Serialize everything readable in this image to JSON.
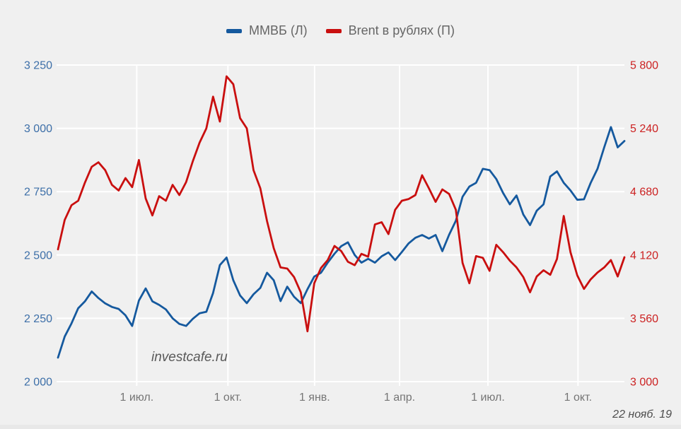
{
  "page": {
    "background": "#f0f0f0"
  },
  "chart": {
    "legend": [
      {
        "label": "ММВБ (Л)",
        "color": "#15599e"
      },
      {
        "label": "Brent в рублях (П)",
        "color": "#c90f0f"
      }
    ],
    "watermark": "investcafe.ru",
    "date_stamp": "22 нояб. 19",
    "chart_data": {
      "type": "line",
      "title": "",
      "background": "#f0f0f0",
      "grid": true,
      "grid_color": "#ffffff",
      "x_axis_label_color": "#757575",
      "x_ticks": [
        {
          "label": "1 июл.",
          "pos": 0.139
        },
        {
          "label": "1 окт.",
          "pos": 0.3
        },
        {
          "label": "1 янв.",
          "pos": 0.453
        },
        {
          "label": "1 апр.",
          "pos": 0.603
        },
        {
          "label": "1 июл.",
          "pos": 0.759
        },
        {
          "label": "1 окт.",
          "pos": 0.918
        }
      ],
      "left_axis": {
        "title": "ММВБ (Л)",
        "color": "#3d6fa8",
        "min": 2000,
        "max": 3250,
        "ticks": [
          {
            "label": "3 250",
            "value": 3250
          },
          {
            "label": "3 000",
            "value": 3000
          },
          {
            "label": "2 750",
            "value": 2750
          },
          {
            "label": "2 500",
            "value": 2500
          },
          {
            "label": "2 250",
            "value": 2250
          },
          {
            "label": "2 000",
            "value": 2000
          }
        ]
      },
      "right_axis": {
        "title": "Brent в рублях (П)",
        "color": "#cc2222",
        "min": 3000,
        "max": 5800,
        "ticks": [
          {
            "label": "5 800",
            "value": 5800
          },
          {
            "label": "5 240",
            "value": 5240
          },
          {
            "label": "4 680",
            "value": 4680
          },
          {
            "label": "4 120",
            "value": 4120
          },
          {
            "label": "3 560",
            "value": 3560
          },
          {
            "label": "3 000",
            "value": 3000
          }
        ]
      },
      "series": [
        {
          "name": "ММВБ (Л)",
          "axis": "left",
          "color": "#15599e",
          "sampling": "weekly, Apr 2018 — 22 Nov 2019",
          "values": [
            2095,
            2178,
            2230,
            2290,
            2317,
            2356,
            2330,
            2309,
            2295,
            2287,
            2262,
            2220,
            2320,
            2368,
            2317,
            2303,
            2285,
            2250,
            2228,
            2220,
            2248,
            2270,
            2276,
            2350,
            2460,
            2490,
            2400,
            2340,
            2310,
            2345,
            2370,
            2430,
            2400,
            2318,
            2375,
            2335,
            2310,
            2365,
            2415,
            2430,
            2470,
            2505,
            2535,
            2550,
            2500,
            2470,
            2485,
            2470,
            2495,
            2510,
            2480,
            2512,
            2546,
            2568,
            2579,
            2565,
            2579,
            2515,
            2580,
            2635,
            2730,
            2770,
            2785,
            2840,
            2835,
            2800,
            2745,
            2700,
            2735,
            2660,
            2618,
            2675,
            2700,
            2810,
            2830,
            2785,
            2755,
            2718,
            2720,
            2785,
            2840,
            2925,
            3005,
            2925,
            2950
          ]
        },
        {
          "name": "Brent в рублях (П)",
          "axis": "right",
          "color": "#c90f0f",
          "sampling": "weekly, Apr 2018 — 22 Nov 2019",
          "values": [
            4170,
            4430,
            4560,
            4600,
            4760,
            4900,
            4940,
            4870,
            4740,
            4690,
            4800,
            4720,
            4960,
            4620,
            4470,
            4640,
            4600,
            4740,
            4650,
            4765,
            4950,
            5115,
            5240,
            5520,
            5300,
            5700,
            5630,
            5330,
            5240,
            4870,
            4710,
            4420,
            4180,
            4010,
            4000,
            3925,
            3790,
            3445,
            3870,
            4005,
            4075,
            4200,
            4155,
            4060,
            4030,
            4130,
            4105,
            4390,
            4410,
            4305,
            4520,
            4600,
            4615,
            4650,
            4825,
            4710,
            4590,
            4700,
            4660,
            4520,
            4050,
            3870,
            4110,
            4095,
            3980,
            4210,
            4145,
            4070,
            4010,
            3925,
            3790,
            3930,
            3985,
            3945,
            4085,
            4465,
            4145,
            3940,
            3820,
            3905,
            3965,
            4010,
            4075,
            3930,
            4100
          ]
        }
      ]
    }
  }
}
